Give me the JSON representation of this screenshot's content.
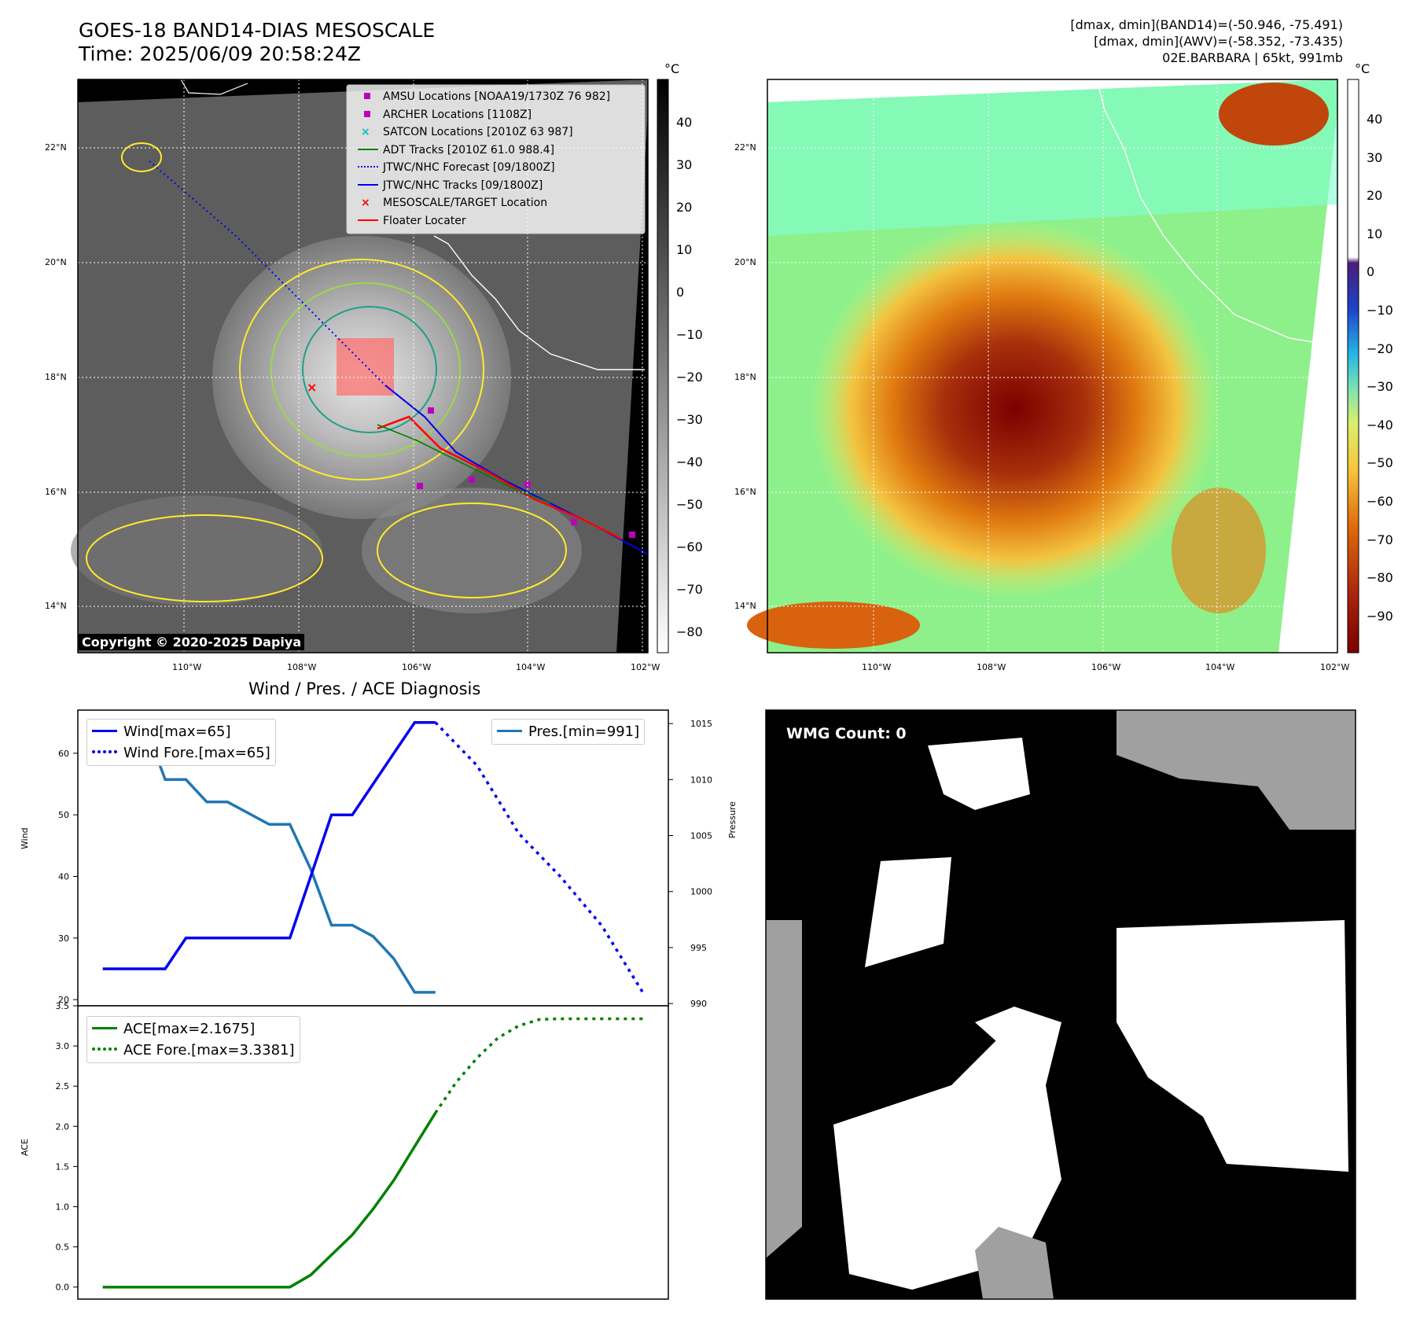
{
  "header": {
    "title": "GOES-18 BAND14-DIAS MESOSCALE",
    "time": "Time: 2025/06/09 20:58:24Z",
    "info_line1": "[dmax, dmin](BAND14)=(-50.946, -75.491)",
    "info_line2": "[dmax, dmin](AWV)=(-58.352, -73.435)",
    "info_line3": "02E.BARBARA | 65kt, 991mb"
  },
  "colors": {
    "wind": "#0000ee",
    "pressure": "#1f77b4",
    "ace": "#008000",
    "floater": "#ff0000",
    "adt": "#008000",
    "amsu": "#bb00bb",
    "satcon": "#00c0c0"
  },
  "map": {
    "lat_labels": [
      "22°N",
      "20°N",
      "18°N",
      "16°N",
      "14°N"
    ],
    "lon_labels": [
      "110°W",
      "108°W",
      "106°W",
      "104°W",
      "102°W"
    ],
    "unit": "°C",
    "copyright": "Copyright © 2020-2025 Dapiya",
    "gray_cbar_ticks": [
      "40",
      "30",
      "20",
      "10",
      "0",
      "−10",
      "−20",
      "−30",
      "−40",
      "−50",
      "−60",
      "−70",
      "−80"
    ],
    "color_cbar_ticks": [
      "40",
      "30",
      "20",
      "10",
      "0",
      "−10",
      "−20",
      "−30",
      "−40",
      "−50",
      "−60",
      "−70",
      "−80",
      "−90"
    ],
    "legend": [
      {
        "label": "AMSU Locations [NOAA19/1730Z 76 982]",
        "marker": "square",
        "color": "#bb00bb"
      },
      {
        "label": "ARCHER Locations [1108Z]",
        "marker": "square",
        "color": "#bb00bb"
      },
      {
        "label": "SATCON Locations [2010Z 63 987]",
        "marker": "x",
        "color": "#00c0c0"
      },
      {
        "label": "ADT Tracks [2010Z 61.0 988.4]",
        "marker": "line",
        "color": "#008000"
      },
      {
        "label": "JTWC/NHC Forecast [09/1800Z]",
        "marker": "dotted",
        "color": "#0000ee"
      },
      {
        "label": "JTWC/NHC Tracks [09/1800Z]",
        "marker": "line-dot",
        "color": "#0000ee"
      },
      {
        "label": "MESOSCALE/TARGET Location",
        "marker": "x",
        "color": "#ff0000"
      },
      {
        "label": "Floater Locater",
        "marker": "line",
        "color": "#ff0000"
      }
    ]
  },
  "diagnosis": {
    "title": "Wind / Pres. / ACE Diagnosis",
    "wind_ylabel": "Wind",
    "pressure_ylabel": "Pressure",
    "ace_ylabel": "ACE",
    "wind_legend": "Wind[max=65]",
    "wind_fore_legend": "Wind Fore.[max=65]",
    "pres_legend": "Pres.[min=991]",
    "ace_legend": "ACE[max=2.1675]",
    "ace_fore_legend": "ACE Fore.[max=3.3381]"
  },
  "wmg": {
    "label": "WMG Count: 0"
  },
  "chart_data": [
    {
      "type": "line",
      "title": "Wind / Pres. / ACE Diagnosis",
      "ylabel": "Wind",
      "ylim": [
        19,
        67
      ],
      "yticks": [
        20,
        30,
        40,
        50,
        60
      ],
      "series": [
        {
          "name": "Wind[max=65]",
          "x": [
            0,
            1,
            2,
            3,
            4,
            5,
            6,
            7,
            8,
            9,
            10,
            11,
            12,
            13,
            14,
            15,
            16,
            17
          ],
          "values": [
            25,
            25,
            25,
            25,
            30,
            30,
            30,
            30,
            30,
            30,
            40,
            50,
            50,
            55,
            60,
            65,
            65,
            null
          ]
        },
        {
          "name": "Wind Fore.[max=65]",
          "x": [
            16,
            18,
            20,
            22,
            24,
            26
          ],
          "values": [
            65,
            58,
            47,
            40,
            32,
            21
          ]
        }
      ]
    },
    {
      "type": "line",
      "ylabel": "Pressure",
      "ylim": [
        990,
        1015
      ],
      "yticks": [
        990,
        995,
        1000,
        1005,
        1010,
        1015
      ],
      "series": [
        {
          "name": "Pres.[min=991]",
          "x": [
            0,
            1,
            2,
            3,
            4,
            5,
            6,
            7,
            8,
            9,
            10,
            11,
            12,
            13,
            14,
            15,
            16
          ],
          "values": [
            1015,
            1015,
            1015,
            1010,
            1010,
            1008,
            1008,
            1007,
            1006,
            1006,
            1002,
            997,
            997,
            996,
            994,
            991,
            991
          ]
        }
      ]
    },
    {
      "type": "line",
      "ylabel": "ACE",
      "ylim": [
        -0.15,
        3.5
      ],
      "yticks": [
        0.0,
        0.5,
        1.0,
        1.5,
        2.0,
        2.5,
        3.0,
        3.5
      ],
      "series": [
        {
          "name": "ACE[max=2.1675]",
          "x": [
            0,
            1,
            2,
            3,
            4,
            5,
            6,
            7,
            8,
            9,
            10,
            11,
            12,
            13,
            14,
            15,
            16
          ],
          "values": [
            0,
            0,
            0,
            0,
            0,
            0,
            0,
            0,
            0,
            0,
            0.15,
            0.4,
            0.65,
            0.97,
            1.33,
            1.75,
            2.1675
          ]
        },
        {
          "name": "ACE Fore.[max=3.3381]",
          "x": [
            16,
            17,
            18,
            19,
            20,
            21,
            22,
            23,
            24,
            25,
            26
          ],
          "values": [
            2.1675,
            2.55,
            2.85,
            3.1,
            3.25,
            3.33,
            3.3381,
            3.3381,
            3.3381,
            3.3381,
            3.3381
          ]
        }
      ]
    }
  ]
}
